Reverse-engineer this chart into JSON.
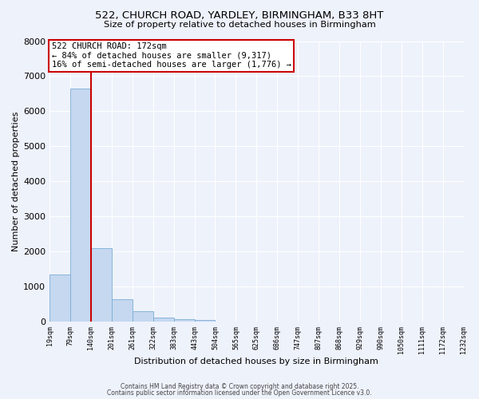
{
  "title_line1": "522, CHURCH ROAD, YARDLEY, BIRMINGHAM, B33 8HT",
  "title_line2": "Size of property relative to detached houses in Birmingham",
  "xlabel": "Distribution of detached houses by size in Birmingham",
  "ylabel": "Number of detached properties",
  "bar_values": [
    1350,
    6650,
    2100,
    650,
    300,
    130,
    80,
    50,
    0,
    0,
    0,
    0,
    0,
    0,
    0,
    0,
    0,
    0,
    0,
    0
  ],
  "bin_labels": [
    "19sqm",
    "79sqm",
    "140sqm",
    "201sqm",
    "261sqm",
    "322sqm",
    "383sqm",
    "443sqm",
    "504sqm",
    "565sqm",
    "625sqm",
    "686sqm",
    "747sqm",
    "807sqm",
    "868sqm",
    "929sqm",
    "990sqm",
    "1050sqm",
    "1111sqm",
    "1172sqm",
    "1232sqm"
  ],
  "bar_color": "#c5d8f0",
  "bar_edge_color": "#7aadd4",
  "background_color": "#eef2fb",
  "grid_color": "#ffffff",
  "vline_color": "#cc0000",
  "annotation_text": "522 CHURCH ROAD: 172sqm\n← 84% of detached houses are smaller (9,317)\n16% of semi-detached houses are larger (1,776) →",
  "annotation_box_color": "#ffffff",
  "annotation_box_edge": "#cc0000",
  "ylim": [
    0,
    8000
  ],
  "yticks": [
    0,
    1000,
    2000,
    3000,
    4000,
    5000,
    6000,
    7000,
    8000
  ],
  "footnote1": "Contains HM Land Registry data © Crown copyright and database right 2025.",
  "footnote2": "Contains public sector information licensed under the Open Government Licence v3.0."
}
